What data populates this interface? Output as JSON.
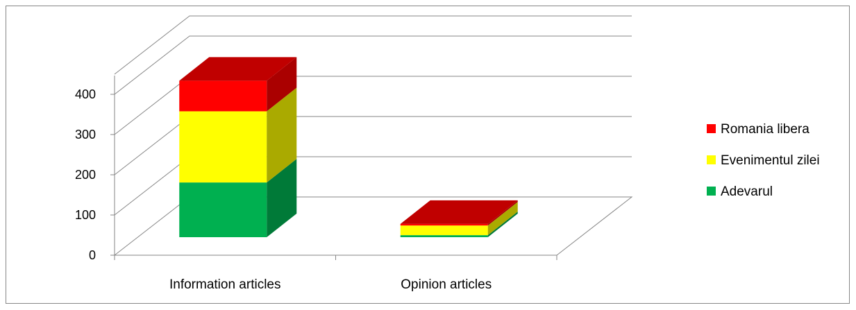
{
  "chart_data": {
    "type": "bar",
    "stacked": true,
    "three_d": true,
    "categories": [
      "Information articles",
      "Opinion articles"
    ],
    "series": [
      {
        "name": "Adevarul",
        "values": [
          136,
          5
        ],
        "color": "#00B050",
        "side_color": "#007A38",
        "top_color": "#00B050"
      },
      {
        "name": "Evenimentul zilei",
        "values": [
          177,
          24
        ],
        "color": "#FFFF00",
        "side_color": "#AAAA00",
        "top_color": "#FFFF00"
      },
      {
        "name": "Romania libera",
        "values": [
          76,
          4
        ],
        "color": "#FF0000",
        "side_color": "#AA0000",
        "top_color": "#C00000"
      }
    ],
    "yticks": [
      0,
      100,
      200,
      300,
      400
    ],
    "ylim": [
      0,
      450
    ],
    "grid": true,
    "legend_position": "right",
    "title": "",
    "xlabel": "",
    "ylabel": ""
  }
}
